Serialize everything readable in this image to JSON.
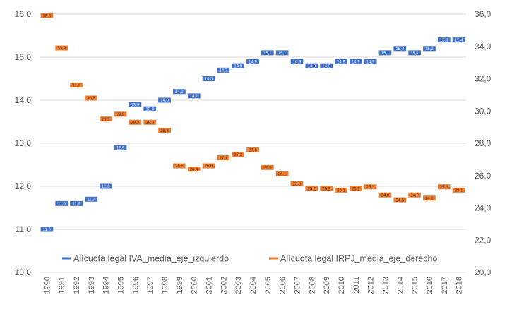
{
  "chart_data": {
    "type": "line",
    "categories": [
      "1990",
      "1991",
      "1992",
      "1993",
      "1994",
      "1995",
      "1996",
      "1997",
      "1998",
      "1999",
      "2000",
      "2001",
      "2002",
      "2003",
      "2004",
      "2005",
      "2006",
      "2007",
      "2008",
      "2009",
      "2010",
      "2011",
      "2012",
      "2013",
      "2014",
      "2015",
      "2016",
      "2017",
      "2018"
    ],
    "series": [
      {
        "name": "Alícuota legal IVA_media_eje_izquierdo",
        "axis": "left",
        "color": "#4472C4",
        "values": [
          11.0,
          11.6,
          11.6,
          11.7,
          12.0,
          12.9,
          13.9,
          13.8,
          14.0,
          14.2,
          14.1,
          14.5,
          14.7,
          14.8,
          14.9,
          15.1,
          15.1,
          14.9,
          14.8,
          14.8,
          14.9,
          14.9,
          14.9,
          15.1,
          15.2,
          15.1,
          15.2,
          15.4,
          15.4
        ]
      },
      {
        "name": "Alícuota legal IRPJ_media_eje_derecho",
        "axis": "right",
        "color": "#ED7D31",
        "values": [
          35.9,
          33.9,
          31.6,
          30.8,
          29.5,
          29.8,
          29.3,
          29.3,
          28.8,
          26.6,
          26.4,
          26.6,
          27.1,
          27.3,
          27.6,
          26.5,
          26.1,
          25.5,
          25.2,
          25.2,
          25.1,
          25.2,
          25.3,
          24.8,
          24.5,
          24.8,
          24.6,
          25.3,
          25.1
        ]
      }
    ],
    "y_left": {
      "min": 10.0,
      "max": 16.0,
      "ticks": [
        "16,0",
        "15,0",
        "14,0",
        "13,0",
        "12,0",
        "11,0",
        "10,0"
      ]
    },
    "y_right": {
      "min": 20.0,
      "max": 36.0,
      "ticks": [
        "36,0",
        "34,0",
        "32,0",
        "30,0",
        "28,0",
        "26,0",
        "24,0",
        "22,0",
        "20,0"
      ]
    },
    "grid": true,
    "legend": "bottom-inside",
    "title": "",
    "xlabel": "",
    "ylabel": ""
  },
  "legend": {
    "iva": "Alícuota legal IVA_media_eje_izquierdo",
    "irpj": "Alícuota legal IRPJ_media_eje_derecho"
  }
}
